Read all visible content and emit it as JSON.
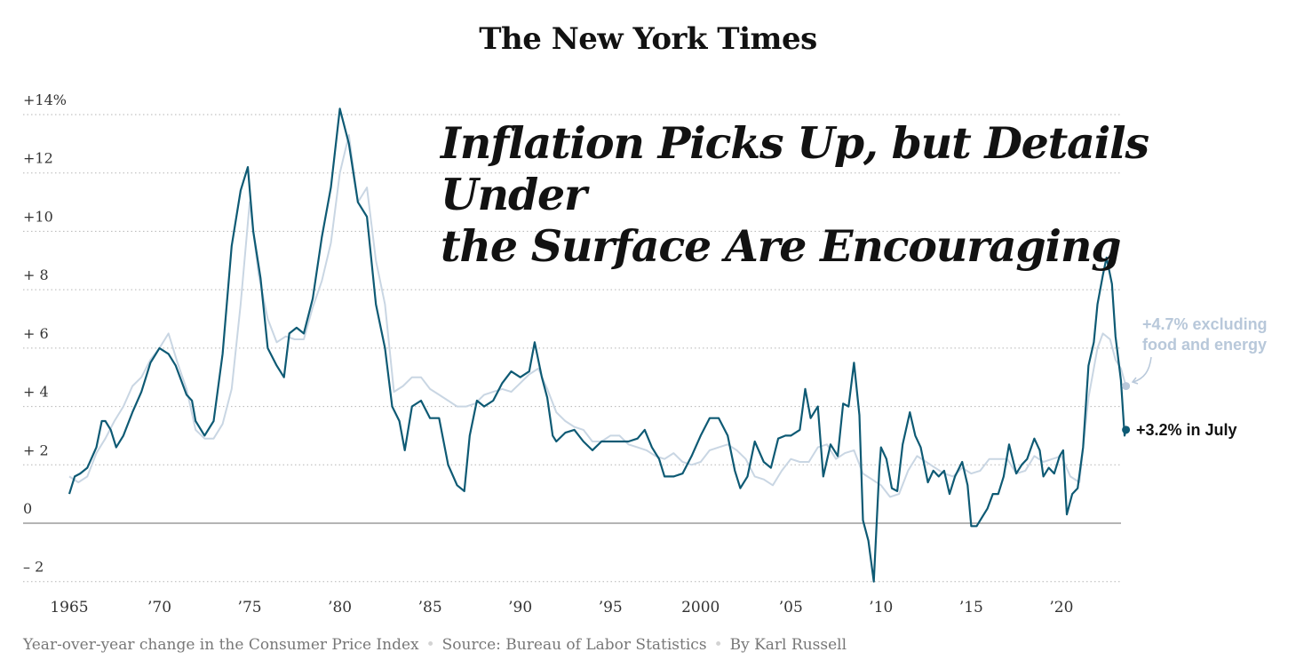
{
  "brand": "The New York Times",
  "headline": {
    "line1": "Inflation Picks Up, but Details Under",
    "line2": "the Surface Are Encouraging"
  },
  "footer": {
    "description": "Year-over-year change in the Consumer Price Index",
    "source": "Source: Bureau of Labor Statistics",
    "byline": "By Karl Russell"
  },
  "colors": {
    "headline_cpi": "#0e5a74",
    "core_cpi": "#c9d6e3",
    "core_annotation": "#b8c8da",
    "grid": "#b5b5b5",
    "zero_line": "#888888"
  },
  "chart_data": {
    "type": "line",
    "xlim": [
      1965,
      2023.6
    ],
    "ylim": [
      -2,
      14.5
    ],
    "grid": true,
    "y_ticks": [
      {
        "value": 14,
        "label": "+14%"
      },
      {
        "value": 12,
        "label": "+12"
      },
      {
        "value": 10,
        "label": "+10"
      },
      {
        "value": 8,
        "label": "+ 8"
      },
      {
        "value": 6,
        "label": "+ 6"
      },
      {
        "value": 4,
        "label": "+ 4"
      },
      {
        "value": 2,
        "label": "+ 2"
      },
      {
        "value": 0,
        "label": "0"
      },
      {
        "value": -2,
        "label": "– 2"
      }
    ],
    "x_ticks": [
      {
        "value": 1965,
        "label": "1965"
      },
      {
        "value": 1970,
        "label": "’70"
      },
      {
        "value": 1975,
        "label": "’75"
      },
      {
        "value": 1980,
        "label": "’80"
      },
      {
        "value": 1985,
        "label": "’85"
      },
      {
        "value": 1990,
        "label": "’90"
      },
      {
        "value": 1995,
        "label": "’95"
      },
      {
        "value": 2000,
        "label": "2000"
      },
      {
        "value": 2005,
        "label": "’05"
      },
      {
        "value": 2010,
        "label": "’10"
      },
      {
        "value": 2015,
        "label": "’15"
      },
      {
        "value": 2020,
        "label": "’20"
      }
    ],
    "series": [
      {
        "key": "core",
        "points": [
          [
            1965.0,
            1.6
          ],
          [
            1965.5,
            1.4
          ],
          [
            1966.0,
            1.6
          ],
          [
            1966.5,
            2.4
          ],
          [
            1967.0,
            2.9
          ],
          [
            1967.5,
            3.5
          ],
          [
            1968.0,
            4.0
          ],
          [
            1968.5,
            4.7
          ],
          [
            1969.0,
            5.0
          ],
          [
            1969.5,
            5.6
          ],
          [
            1970.0,
            6.0
          ],
          [
            1970.5,
            6.5
          ],
          [
            1971.0,
            5.5
          ],
          [
            1971.5,
            4.6
          ],
          [
            1972.0,
            3.2
          ],
          [
            1972.5,
            2.9
          ],
          [
            1973.0,
            2.9
          ],
          [
            1973.5,
            3.4
          ],
          [
            1974.0,
            4.6
          ],
          [
            1974.5,
            7.5
          ],
          [
            1975.0,
            11.0
          ],
          [
            1975.5,
            8.5
          ],
          [
            1976.0,
            7.0
          ],
          [
            1976.5,
            6.2
          ],
          [
            1977.0,
            6.4
          ],
          [
            1977.5,
            6.3
          ],
          [
            1978.0,
            6.3
          ],
          [
            1978.5,
            7.4
          ],
          [
            1979.0,
            8.3
          ],
          [
            1979.5,
            9.6
          ],
          [
            1980.0,
            12.0
          ],
          [
            1980.5,
            13.3
          ],
          [
            1981.0,
            11.0
          ],
          [
            1981.5,
            11.5
          ],
          [
            1982.0,
            9.0
          ],
          [
            1982.5,
            7.5
          ],
          [
            1983.0,
            4.5
          ],
          [
            1983.5,
            4.7
          ],
          [
            1984.0,
            5.0
          ],
          [
            1984.5,
            5.0
          ],
          [
            1985.0,
            4.6
          ],
          [
            1985.5,
            4.4
          ],
          [
            1986.0,
            4.2
          ],
          [
            1986.5,
            4.0
          ],
          [
            1987.0,
            4.0
          ],
          [
            1987.5,
            4.1
          ],
          [
            1988.0,
            4.4
          ],
          [
            1988.5,
            4.5
          ],
          [
            1989.0,
            4.6
          ],
          [
            1989.5,
            4.5
          ],
          [
            1990.0,
            4.8
          ],
          [
            1990.5,
            5.1
          ],
          [
            1991.0,
            5.3
          ],
          [
            1991.5,
            4.6
          ],
          [
            1992.0,
            3.8
          ],
          [
            1992.5,
            3.5
          ],
          [
            1993.0,
            3.3
          ],
          [
            1993.5,
            3.2
          ],
          [
            1994.0,
            2.8
          ],
          [
            1994.5,
            2.8
          ],
          [
            1995.0,
            3.0
          ],
          [
            1995.5,
            3.0
          ],
          [
            1996.0,
            2.7
          ],
          [
            1996.5,
            2.6
          ],
          [
            1997.0,
            2.5
          ],
          [
            1997.5,
            2.3
          ],
          [
            1998.0,
            2.2
          ],
          [
            1998.5,
            2.4
          ],
          [
            1999.0,
            2.1
          ],
          [
            1999.5,
            2.0
          ],
          [
            2000.0,
            2.1
          ],
          [
            2000.5,
            2.5
          ],
          [
            2001.0,
            2.6
          ],
          [
            2001.5,
            2.7
          ],
          [
            2002.0,
            2.5
          ],
          [
            2002.5,
            2.2
          ],
          [
            2003.0,
            1.6
          ],
          [
            2003.5,
            1.5
          ],
          [
            2004.0,
            1.3
          ],
          [
            2004.5,
            1.8
          ],
          [
            2005.0,
            2.2
          ],
          [
            2005.5,
            2.1
          ],
          [
            2006.0,
            2.1
          ],
          [
            2006.5,
            2.6
          ],
          [
            2007.0,
            2.7
          ],
          [
            2007.5,
            2.2
          ],
          [
            2008.0,
            2.4
          ],
          [
            2008.5,
            2.5
          ],
          [
            2009.0,
            1.7
          ],
          [
            2009.5,
            1.5
          ],
          [
            2010.0,
            1.3
          ],
          [
            2010.5,
            0.9
          ],
          [
            2011.0,
            1.0
          ],
          [
            2011.5,
            1.8
          ],
          [
            2012.0,
            2.3
          ],
          [
            2012.5,
            2.1
          ],
          [
            2013.0,
            1.9
          ],
          [
            2013.5,
            1.7
          ],
          [
            2014.0,
            1.6
          ],
          [
            2014.5,
            1.9
          ],
          [
            2015.0,
            1.7
          ],
          [
            2015.5,
            1.8
          ],
          [
            2016.0,
            2.2
          ],
          [
            2016.5,
            2.2
          ],
          [
            2017.0,
            2.2
          ],
          [
            2017.5,
            1.7
          ],
          [
            2018.0,
            1.8
          ],
          [
            2018.5,
            2.3
          ],
          [
            2019.0,
            2.1
          ],
          [
            2019.5,
            2.2
          ],
          [
            2020.0,
            2.3
          ],
          [
            2020.5,
            1.6
          ],
          [
            2021.0,
            1.4
          ],
          [
            2021.5,
            4.3
          ],
          [
            2022.0,
            6.0
          ],
          [
            2022.3,
            6.5
          ],
          [
            2022.7,
            6.3
          ],
          [
            2023.0,
            5.6
          ],
          [
            2023.3,
            5.3
          ],
          [
            2023.58,
            4.7
          ]
        ]
      },
      {
        "key": "headline",
        "points": [
          [
            1965.0,
            1.0
          ],
          [
            1965.3,
            1.6
          ],
          [
            1965.6,
            1.7
          ],
          [
            1966.0,
            1.9
          ],
          [
            1966.5,
            2.6
          ],
          [
            1966.8,
            3.5
          ],
          [
            1967.0,
            3.5
          ],
          [
            1967.3,
            3.2
          ],
          [
            1967.6,
            2.6
          ],
          [
            1968.0,
            3.0
          ],
          [
            1968.5,
            3.8
          ],
          [
            1969.0,
            4.5
          ],
          [
            1969.5,
            5.5
          ],
          [
            1970.0,
            6.0
          ],
          [
            1970.5,
            5.8
          ],
          [
            1970.9,
            5.4
          ],
          [
            1971.5,
            4.4
          ],
          [
            1971.8,
            4.2
          ],
          [
            1972.0,
            3.5
          ],
          [
            1972.5,
            3.0
          ],
          [
            1973.0,
            3.5
          ],
          [
            1973.5,
            5.8
          ],
          [
            1974.0,
            9.5
          ],
          [
            1974.5,
            11.4
          ],
          [
            1974.9,
            12.2
          ],
          [
            1975.2,
            10.0
          ],
          [
            1975.6,
            8.4
          ],
          [
            1976.0,
            6.0
          ],
          [
            1976.5,
            5.4
          ],
          [
            1976.9,
            5.0
          ],
          [
            1977.2,
            6.5
          ],
          [
            1977.6,
            6.7
          ],
          [
            1978.0,
            6.5
          ],
          [
            1978.5,
            7.7
          ],
          [
            1979.0,
            9.8
          ],
          [
            1979.5,
            11.5
          ],
          [
            1980.0,
            14.2
          ],
          [
            1980.5,
            13.0
          ],
          [
            1981.0,
            11.0
          ],
          [
            1981.5,
            10.5
          ],
          [
            1982.0,
            7.5
          ],
          [
            1982.5,
            6.0
          ],
          [
            1982.9,
            4.0
          ],
          [
            1983.3,
            3.5
          ],
          [
            1983.6,
            2.5
          ],
          [
            1984.0,
            4.0
          ],
          [
            1984.5,
            4.2
          ],
          [
            1985.0,
            3.6
          ],
          [
            1985.5,
            3.6
          ],
          [
            1986.0,
            2.0
          ],
          [
            1986.5,
            1.3
          ],
          [
            1986.9,
            1.1
          ],
          [
            1987.2,
            3.0
          ],
          [
            1987.6,
            4.2
          ],
          [
            1988.0,
            4.0
          ],
          [
            1988.5,
            4.2
          ],
          [
            1989.0,
            4.8
          ],
          [
            1989.5,
            5.2
          ],
          [
            1990.0,
            5.0
          ],
          [
            1990.5,
            5.2
          ],
          [
            1990.8,
            6.2
          ],
          [
            1991.2,
            5.0
          ],
          [
            1991.5,
            4.3
          ],
          [
            1991.8,
            3.0
          ],
          [
            1992.0,
            2.8
          ],
          [
            1992.5,
            3.1
          ],
          [
            1993.0,
            3.2
          ],
          [
            1993.5,
            2.8
          ],
          [
            1994.0,
            2.5
          ],
          [
            1994.5,
            2.8
          ],
          [
            1995.0,
            2.8
          ],
          [
            1995.5,
            2.8
          ],
          [
            1996.0,
            2.8
          ],
          [
            1996.5,
            2.9
          ],
          [
            1996.9,
            3.2
          ],
          [
            1997.3,
            2.6
          ],
          [
            1997.7,
            2.2
          ],
          [
            1998.0,
            1.6
          ],
          [
            1998.5,
            1.6
          ],
          [
            1999.0,
            1.7
          ],
          [
            1999.5,
            2.3
          ],
          [
            2000.0,
            3.0
          ],
          [
            2000.5,
            3.6
          ],
          [
            2001.0,
            3.6
          ],
          [
            2001.5,
            3.0
          ],
          [
            2001.9,
            1.8
          ],
          [
            2002.2,
            1.2
          ],
          [
            2002.6,
            1.6
          ],
          [
            2003.0,
            2.8
          ],
          [
            2003.5,
            2.1
          ],
          [
            2003.9,
            1.9
          ],
          [
            2004.3,
            2.9
          ],
          [
            2004.7,
            3.0
          ],
          [
            2005.0,
            3.0
          ],
          [
            2005.5,
            3.2
          ],
          [
            2005.8,
            4.6
          ],
          [
            2006.1,
            3.6
          ],
          [
            2006.5,
            4.0
          ],
          [
            2006.8,
            1.6
          ],
          [
            2007.2,
            2.7
          ],
          [
            2007.6,
            2.3
          ],
          [
            2007.9,
            4.1
          ],
          [
            2008.2,
            4.0
          ],
          [
            2008.5,
            5.5
          ],
          [
            2008.8,
            3.7
          ],
          [
            2009.0,
            0.1
          ],
          [
            2009.3,
            -0.6
          ],
          [
            2009.6,
            -2.0
          ],
          [
            2009.9,
            1.8
          ],
          [
            2010.0,
            2.6
          ],
          [
            2010.3,
            2.2
          ],
          [
            2010.6,
            1.2
          ],
          [
            2010.9,
            1.1
          ],
          [
            2011.2,
            2.7
          ],
          [
            2011.6,
            3.8
          ],
          [
            2011.9,
            3.0
          ],
          [
            2012.2,
            2.6
          ],
          [
            2012.6,
            1.4
          ],
          [
            2012.9,
            1.8
          ],
          [
            2013.2,
            1.6
          ],
          [
            2013.5,
            1.8
          ],
          [
            2013.8,
            1.0
          ],
          [
            2014.1,
            1.6
          ],
          [
            2014.5,
            2.1
          ],
          [
            2014.8,
            1.3
          ],
          [
            2015.0,
            -0.1
          ],
          [
            2015.3,
            -0.1
          ],
          [
            2015.6,
            0.2
          ],
          [
            2015.9,
            0.5
          ],
          [
            2016.2,
            1.0
          ],
          [
            2016.5,
            1.0
          ],
          [
            2016.8,
            1.6
          ],
          [
            2017.1,
            2.7
          ],
          [
            2017.5,
            1.7
          ],
          [
            2017.8,
            2.0
          ],
          [
            2018.1,
            2.2
          ],
          [
            2018.5,
            2.9
          ],
          [
            2018.8,
            2.5
          ],
          [
            2019.0,
            1.6
          ],
          [
            2019.3,
            1.9
          ],
          [
            2019.6,
            1.7
          ],
          [
            2019.9,
            2.3
          ],
          [
            2020.1,
            2.5
          ],
          [
            2020.3,
            0.3
          ],
          [
            2020.6,
            1.0
          ],
          [
            2020.9,
            1.2
          ],
          [
            2021.2,
            2.6
          ],
          [
            2021.5,
            5.4
          ],
          [
            2021.8,
            6.2
          ],
          [
            2022.0,
            7.5
          ],
          [
            2022.3,
            8.5
          ],
          [
            2022.5,
            9.1
          ],
          [
            2022.8,
            8.2
          ],
          [
            2023.0,
            6.4
          ],
          [
            2023.3,
            4.9
          ],
          [
            2023.5,
            3.0
          ],
          [
            2023.58,
            3.2
          ]
        ]
      }
    ],
    "annotations": [
      {
        "series": "core",
        "line1": "+4.7% excluding",
        "line2": "food and energy"
      },
      {
        "series": "headline",
        "text": "+3.2% in July"
      }
    ]
  }
}
